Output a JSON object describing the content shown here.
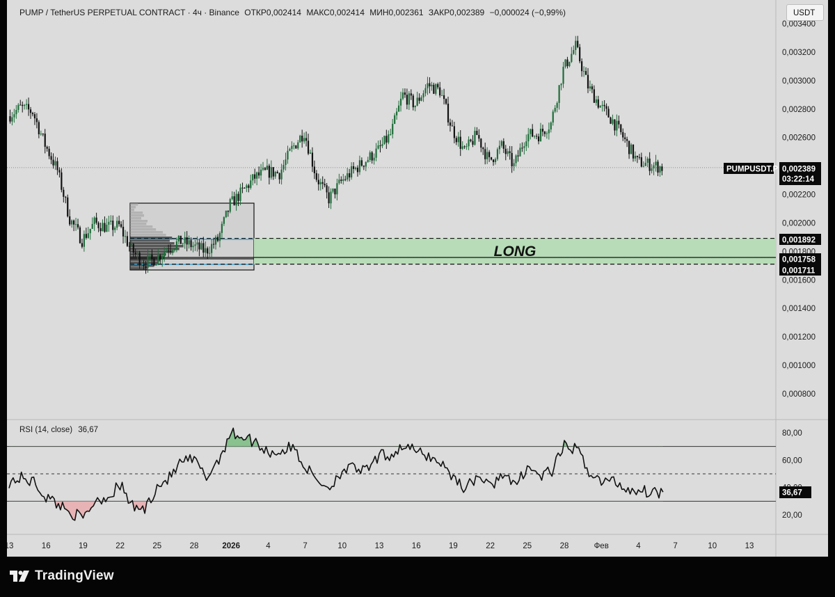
{
  "header": {
    "symbol": "PUMP / TetherUS PERPETUAL CONTRACT · 4ч · Binance",
    "open": "ОТКР0,002414",
    "high": "МАКС0,002414",
    "low": "МИН0,002361",
    "close": "ЗАКР0,002389",
    "change": "−0,000024 (−0,99%)"
  },
  "currency_button": "USDT",
  "price_axis": {
    "ticks": [
      {
        "label": "0,003400",
        "value": 0.0034
      },
      {
        "label": "0,003200",
        "value": 0.0032
      },
      {
        "label": "0,003000",
        "value": 0.003
      },
      {
        "label": "0,002800",
        "value": 0.0028
      },
      {
        "label": "0,002600",
        "value": 0.0026
      },
      {
        "label": "0,002200",
        "value": 0.0022
      },
      {
        "label": "0,002000",
        "value": 0.002
      },
      {
        "label": "0,001800",
        "value": 0.0018
      },
      {
        "label": "0,001600",
        "value": 0.0016
      },
      {
        "label": "0,001400",
        "value": 0.0014
      },
      {
        "label": "0,001200",
        "value": 0.0012
      },
      {
        "label": "0,001000",
        "value": 0.001
      },
      {
        "label": "0,000800",
        "value": 0.0008
      }
    ]
  },
  "tags": {
    "symbol_tag": "PUMPUSDT.P",
    "last_price": "0,002389",
    "countdown": "03:22:14",
    "level_top": "0,001892",
    "level_mid": "0,001758",
    "level_bottom": "0,001711"
  },
  "levels": {
    "top": 0.001892,
    "mid": 0.001758,
    "bottom": 0.001711,
    "last": 0.002389
  },
  "zone_label": "LONG",
  "rsi": {
    "title": "RSI (14, close)",
    "value": "36,67",
    "ticks": [
      {
        "label": "80,00",
        "value": 80
      },
      {
        "label": "60,00",
        "value": 60
      },
      {
        "label": "40,00",
        "value": 40
      },
      {
        "label": "20,00",
        "value": 20
      }
    ],
    "upper_band": 70,
    "middle_band": 50,
    "lower_band": 30
  },
  "time_axis": {
    "ticks": [
      {
        "label": "13"
      },
      {
        "label": "16"
      },
      {
        "label": "19"
      },
      {
        "label": "22"
      },
      {
        "label": "25"
      },
      {
        "label": "28"
      },
      {
        "label": "2026"
      },
      {
        "label": "4"
      },
      {
        "label": "7"
      },
      {
        "label": "10"
      },
      {
        "label": "13"
      },
      {
        "label": "16"
      },
      {
        "label": "19"
      },
      {
        "label": "22"
      },
      {
        "label": "25"
      },
      {
        "label": "28"
      },
      {
        "label": "Фев"
      },
      {
        "label": "4"
      },
      {
        "label": "7"
      },
      {
        "label": "10"
      },
      {
        "label": "13"
      }
    ]
  },
  "chart_data": {
    "type": "candlestick",
    "title": "PUMP / TetherUS PERPETUAL CONTRACT · 4ч · Binance",
    "x_ticks": [
      "13",
      "16",
      "19",
      "22",
      "25",
      "28",
      "2026",
      "4",
      "7",
      "10",
      "13",
      "16",
      "19",
      "22",
      "25",
      "28",
      "Фев",
      "4",
      "7",
      "10",
      "13"
    ],
    "price_range": [
      0.00071,
      0.00346
    ],
    "close_path": [
      {
        "x": "13",
        "y": 0.00275
      },
      {
        "x": "14",
        "y": 0.00281
      },
      {
        "x": "15",
        "y": 0.00278
      },
      {
        "x": "16",
        "y": 0.00255
      },
      {
        "x": "17",
        "y": 0.00237
      },
      {
        "x": "18",
        "y": 0.00203
      },
      {
        "x": "19",
        "y": 0.00188
      },
      {
        "x": "20",
        "y": 0.002
      },
      {
        "x": "21",
        "y": 0.00197
      },
      {
        "x": "22",
        "y": 0.00198
      },
      {
        "x": "23",
        "y": 0.00181
      },
      {
        "x": "24",
        "y": 0.00172
      },
      {
        "x": "25",
        "y": 0.00175
      },
      {
        "x": "26",
        "y": 0.00183
      },
      {
        "x": "27",
        "y": 0.00187
      },
      {
        "x": "28",
        "y": 0.00184
      },
      {
        "x": "29",
        "y": 0.0018
      },
      {
        "x": "30",
        "y": 0.00188
      },
      {
        "x": "31",
        "y": 0.00213
      },
      {
        "x": "2026",
        "y": 0.00222
      },
      {
        "x": "2",
        "y": 0.00232
      },
      {
        "x": "3",
        "y": 0.00236
      },
      {
        "x": "4",
        "y": 0.00235
      },
      {
        "x": "5",
        "y": 0.00252
      },
      {
        "x": "6",
        "y": 0.00264
      },
      {
        "x": "7",
        "y": 0.00232
      },
      {
        "x": "8",
        "y": 0.00217
      },
      {
        "x": "9",
        "y": 0.00229
      },
      {
        "x": "10",
        "y": 0.00237
      },
      {
        "x": "11",
        "y": 0.00244
      },
      {
        "x": "12",
        "y": 0.00251
      },
      {
        "x": "13",
        "y": 0.00262
      },
      {
        "x": "14",
        "y": 0.0029
      },
      {
        "x": "15",
        "y": 0.00283
      },
      {
        "x": "16",
        "y": 0.00297
      },
      {
        "x": "17",
        "y": 0.00293
      },
      {
        "x": "18",
        "y": 0.00266
      },
      {
        "x": "19",
        "y": 0.0025
      },
      {
        "x": "20",
        "y": 0.00262
      },
      {
        "x": "21",
        "y": 0.00243
      },
      {
        "x": "22",
        "y": 0.00254
      },
      {
        "x": "23",
        "y": 0.0024
      },
      {
        "x": "24",
        "y": 0.00262
      },
      {
        "x": "25",
        "y": 0.00262
      },
      {
        "x": "26",
        "y": 0.0027
      },
      {
        "x": "27",
        "y": 0.00308
      },
      {
        "x": "28",
        "y": 0.00324
      },
      {
        "x": "29",
        "y": 0.00296
      },
      {
        "x": "30",
        "y": 0.00282
      },
      {
        "x": "31",
        "y": 0.00272
      },
      {
        "x": "Фев",
        "y": 0.00258
      },
      {
        "x": "2",
        "y": 0.00243
      },
      {
        "x": "3",
        "y": 0.00241
      },
      {
        "x": "4",
        "y": 0.00239
      }
    ],
    "zones": [
      {
        "label": "LONG",
        "from": 0.001711,
        "to": 0.001892,
        "mid": 0.001758
      }
    ],
    "indicator": {
      "name": "RSI (14, close)",
      "last": 36.67,
      "range": [
        10,
        90
      ],
      "bands": [
        30,
        50,
        70
      ],
      "values": [
        {
          "x": "13",
          "y": 44
        },
        {
          "x": "14",
          "y": 47
        },
        {
          "x": "15",
          "y": 44
        },
        {
          "x": "16",
          "y": 33
        },
        {
          "x": "17",
          "y": 28
        },
        {
          "x": "18",
          "y": 22
        },
        {
          "x": "19",
          "y": 17
        },
        {
          "x": "20",
          "y": 31
        },
        {
          "x": "21",
          "y": 33
        },
        {
          "x": "22",
          "y": 42
        },
        {
          "x": "23",
          "y": 26
        },
        {
          "x": "24",
          "y": 24
        },
        {
          "x": "25",
          "y": 41
        },
        {
          "x": "26",
          "y": 47
        },
        {
          "x": "27",
          "y": 59
        },
        {
          "x": "28",
          "y": 60
        },
        {
          "x": "29",
          "y": 47
        },
        {
          "x": "30",
          "y": 61
        },
        {
          "x": "31",
          "y": 80
        },
        {
          "x": "2026",
          "y": 77
        },
        {
          "x": "2",
          "y": 73
        },
        {
          "x": "3",
          "y": 66
        },
        {
          "x": "4",
          "y": 66
        },
        {
          "x": "5",
          "y": 70
        },
        {
          "x": "6",
          "y": 55
        },
        {
          "x": "7",
          "y": 45
        },
        {
          "x": "8",
          "y": 40
        },
        {
          "x": "9",
          "y": 53
        },
        {
          "x": "10",
          "y": 54
        },
        {
          "x": "11",
          "y": 52
        },
        {
          "x": "12",
          "y": 63
        },
        {
          "x": "13",
          "y": 64
        },
        {
          "x": "14",
          "y": 71
        },
        {
          "x": "15",
          "y": 66
        },
        {
          "x": "16",
          "y": 63
        },
        {
          "x": "17",
          "y": 58
        },
        {
          "x": "18",
          "y": 48
        },
        {
          "x": "19",
          "y": 39
        },
        {
          "x": "20",
          "y": 49
        },
        {
          "x": "21",
          "y": 40
        },
        {
          "x": "22",
          "y": 51
        },
        {
          "x": "23",
          "y": 40
        },
        {
          "x": "24",
          "y": 56
        },
        {
          "x": "25",
          "y": 48
        },
        {
          "x": "26",
          "y": 52
        },
        {
          "x": "27",
          "y": 70
        },
        {
          "x": "28",
          "y": 68
        },
        {
          "x": "29",
          "y": 52
        },
        {
          "x": "30",
          "y": 44
        },
        {
          "x": "31",
          "y": 45
        },
        {
          "x": "Фев",
          "y": 39
        },
        {
          "x": "2",
          "y": 38
        },
        {
          "x": "3",
          "y": 37
        },
        {
          "x": "4",
          "y": 36.67
        }
      ]
    }
  }
}
